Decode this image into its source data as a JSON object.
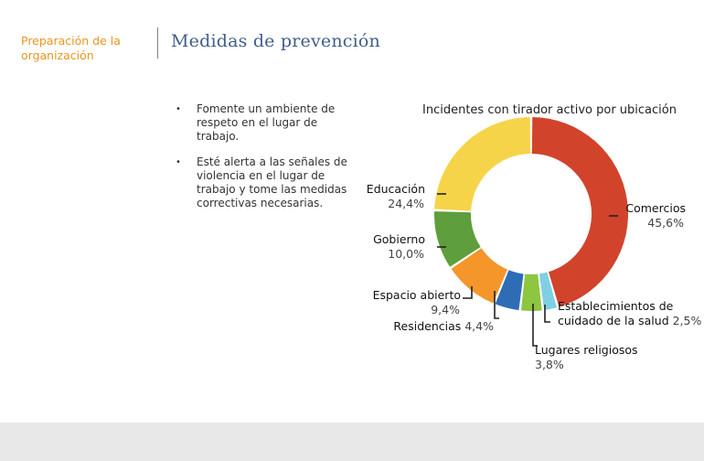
{
  "header": {
    "section": "Preparación de la organización",
    "title": "Medidas de prevención"
  },
  "bullets": [
    "Fomente un ambiente de respeto en el lugar de trabajo.",
    "Esté alerta a las señales de violencia en el lugar de trabajo y tome las medidas correctivas necesarias."
  ],
  "chart_data": {
    "type": "pie",
    "title": "Incidentes con tirador activo por ubicación",
    "donut": true,
    "start": "12 o'clock, clockwise",
    "slices": [
      {
        "label": "Comercios",
        "value": 45.6,
        "value_text": "45,6%",
        "color": "#d2432c"
      },
      {
        "label": "Establecimientos de cuidado de la salud",
        "value": 2.5,
        "value_text": "2,5%",
        "color": "#7fd0e3"
      },
      {
        "label": "Lugares religiosos",
        "value": 3.8,
        "value_text": "3,8%",
        "color": "#8dc63f"
      },
      {
        "label": "Residencias",
        "value": 4.4,
        "value_text": "4,4%",
        "color": "#2e6db5"
      },
      {
        "label": "Espacio abierto",
        "value": 9.4,
        "value_text": "9,4%",
        "color": "#f4962a"
      },
      {
        "label": "Gobierno",
        "value": 10.0,
        "value_text": "10,0%",
        "color": "#5e9e3c"
      },
      {
        "label": "Educación",
        "value": 24.4,
        "value_text": "24,4%",
        "color": "#f5d44a"
      }
    ]
  }
}
